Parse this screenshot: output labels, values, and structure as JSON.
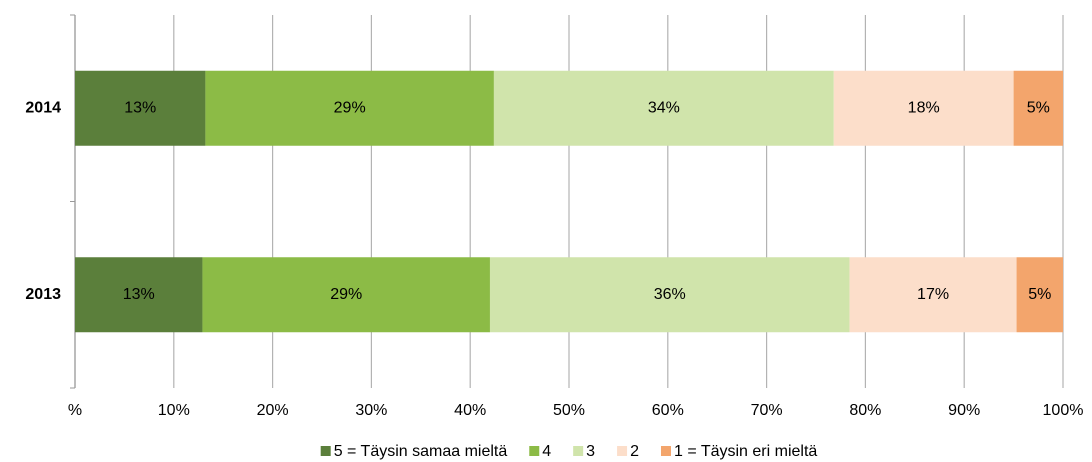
{
  "chart_data": {
    "type": "stacked-bar-horizontal",
    "categories": [
      "2014",
      "2013"
    ],
    "series": [
      {
        "name": "5 = Täysin samaa mieltä",
        "color": "#5b7f3b",
        "values": [
          13.2,
          12.9
        ],
        "value_labels": [
          "13%",
          "13%"
        ]
      },
      {
        "name": "4",
        "color": "#8cbb46",
        "values": [
          29.2,
          29.1
        ],
        "value_labels": [
          "29%",
          "29%"
        ]
      },
      {
        "name": "3",
        "color": "#d0e4ab",
        "values": [
          34.4,
          36.4
        ],
        "value_labels": [
          "34%",
          "36%"
        ]
      },
      {
        "name": "2",
        "color": "#fcdeca",
        "values": [
          18.2,
          16.9
        ],
        "value_labels": [
          "18%",
          "17%"
        ]
      },
      {
        "name": "1 = Täysin eri mieltä",
        "color": "#f3a56c",
        "values": [
          5.0,
          4.7
        ],
        "value_labels": [
          "5%",
          "5%"
        ]
      }
    ],
    "xlim": [
      0,
      100
    ],
    "xticks": [
      {
        "value": 0,
        "label": "%"
      },
      {
        "value": 10,
        "label": "10%"
      },
      {
        "value": 20,
        "label": "20%"
      },
      {
        "value": 30,
        "label": "30%"
      },
      {
        "value": 40,
        "label": "40%"
      },
      {
        "value": 50,
        "label": "50%"
      },
      {
        "value": 60,
        "label": "60%"
      },
      {
        "value": 70,
        "label": "70%"
      },
      {
        "value": 80,
        "label": "80%"
      },
      {
        "value": 90,
        "label": "90%"
      },
      {
        "value": 100,
        "label": "100%"
      }
    ],
    "grid": true,
    "legend": "bottom"
  }
}
